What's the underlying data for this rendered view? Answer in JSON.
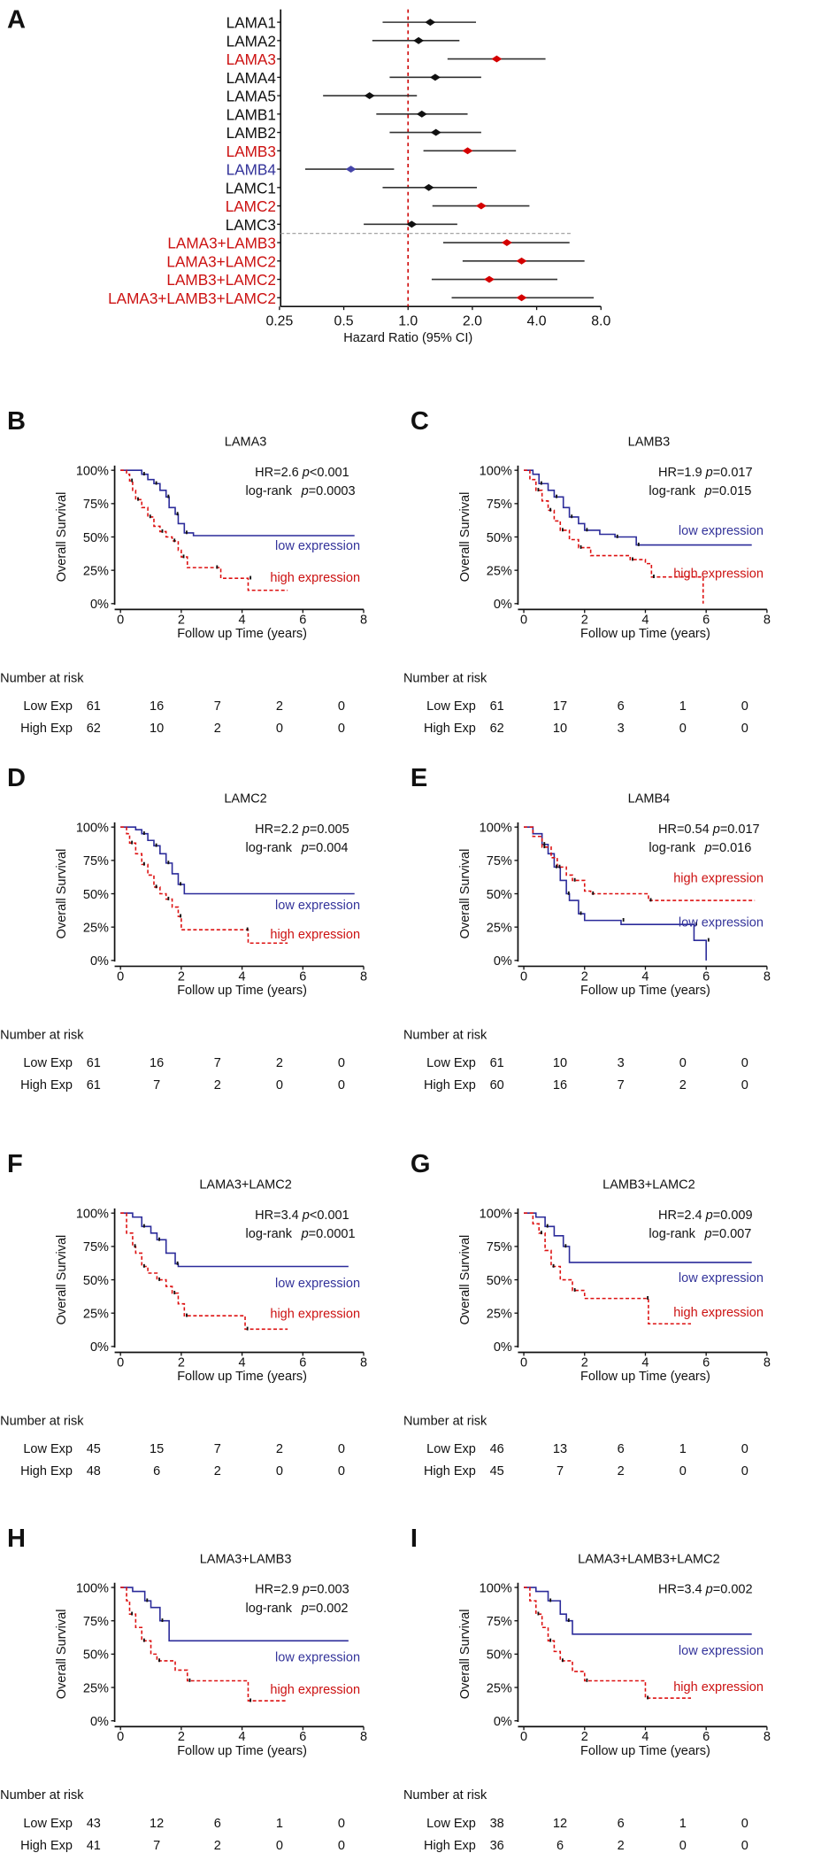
{
  "colors": {
    "red": "#cc1111",
    "blue": "#33339a",
    "black": "#111111",
    "diamond_blue": "#4545a8"
  },
  "chart_data": [
    {
      "panel": "A",
      "type": "forest",
      "xlabel": "Hazard Ratio (95% CI)",
      "xscale": "log2",
      "xticks": [
        "0.25",
        "0.5",
        "1.0",
        "2.0",
        "4.0",
        "8.0"
      ],
      "xtick_values": [
        0.25,
        0.5,
        1,
        2,
        4,
        8
      ],
      "reference_line": 1.0,
      "rows": [
        {
          "label": "LAMA1",
          "hr": 1.27,
          "lo": 0.76,
          "hi": 2.08,
          "color": "black"
        },
        {
          "label": "LAMA2",
          "hr": 1.12,
          "lo": 0.68,
          "hi": 1.74,
          "color": "black"
        },
        {
          "label": "LAMA3",
          "hr": 2.6,
          "lo": 1.53,
          "hi": 4.4,
          "color": "red"
        },
        {
          "label": "LAMA4",
          "hr": 1.34,
          "lo": 0.82,
          "hi": 2.2,
          "color": "black"
        },
        {
          "label": "LAMA5",
          "hr": 0.66,
          "lo": 0.4,
          "hi": 1.1,
          "color": "black"
        },
        {
          "label": "LAMB1",
          "hr": 1.16,
          "lo": 0.71,
          "hi": 1.9,
          "color": "black"
        },
        {
          "label": "LAMB2",
          "hr": 1.35,
          "lo": 0.82,
          "hi": 2.2,
          "color": "black"
        },
        {
          "label": "LAMB3",
          "hr": 1.9,
          "lo": 1.18,
          "hi": 3.2,
          "color": "red"
        },
        {
          "label": "LAMB4",
          "hr": 0.54,
          "lo": 0.33,
          "hi": 0.86,
          "color": "blue"
        },
        {
          "label": "LAMC1",
          "hr": 1.25,
          "lo": 0.76,
          "hi": 2.1,
          "color": "black"
        },
        {
          "label": "LAMC2",
          "hr": 2.2,
          "lo": 1.3,
          "hi": 3.7,
          "color": "red"
        },
        {
          "label": "LAMC3",
          "hr": 1.04,
          "lo": 0.62,
          "hi": 1.7,
          "color": "black"
        },
        {
          "label": "LAMA3+LAMB3",
          "hr": 2.9,
          "lo": 1.46,
          "hi": 5.7,
          "color": "red"
        },
        {
          "label": "LAMA3+LAMC2",
          "hr": 3.4,
          "lo": 1.8,
          "hi": 6.7,
          "color": "red"
        },
        {
          "label": "LAMB3+LAMC2",
          "hr": 2.4,
          "lo": 1.29,
          "hi": 5.0,
          "color": "red"
        },
        {
          "label": "LAMA3+LAMB3+LAMC2",
          "hr": 3.4,
          "lo": 1.6,
          "hi": 7.4,
          "color": "red"
        }
      ]
    },
    {
      "panel": "B",
      "type": "line",
      "title": "LAMA3",
      "hr": "HR=2.6",
      "hr_p": "<0.001",
      "logrank_p": "=0.0003",
      "low": [
        [
          0,
          1
        ],
        [
          0.5,
          1
        ],
        [
          0.7,
          0.97
        ],
        [
          0.9,
          0.93
        ],
        [
          1.1,
          0.9
        ],
        [
          1.3,
          0.85
        ],
        [
          1.5,
          0.8
        ],
        [
          1.6,
          0.72
        ],
        [
          1.8,
          0.67
        ],
        [
          1.9,
          0.6
        ],
        [
          2.1,
          0.53
        ],
        [
          2.4,
          0.51
        ],
        [
          7.7,
          0.51
        ]
      ],
      "high": [
        [
          0,
          1
        ],
        [
          0.2,
          0.97
        ],
        [
          0.3,
          0.92
        ],
        [
          0.4,
          0.85
        ],
        [
          0.5,
          0.78
        ],
        [
          0.7,
          0.72
        ],
        [
          0.9,
          0.65
        ],
        [
          1.1,
          0.58
        ],
        [
          1.3,
          0.54
        ],
        [
          1.5,
          0.5
        ],
        [
          1.7,
          0.47
        ],
        [
          1.9,
          0.4
        ],
        [
          2.0,
          0.35
        ],
        [
          2.2,
          0.27
        ],
        [
          3.1,
          0.27
        ],
        [
          3.3,
          0.19
        ],
        [
          4.2,
          0.19
        ],
        [
          4.2,
          0.1
        ],
        [
          5.5,
          0.1
        ]
      ],
      "risk_low": [
        "61",
        "16",
        "7",
        "2",
        "0"
      ],
      "risk_high": [
        "62",
        "10",
        "2",
        "0",
        "0"
      ]
    },
    {
      "panel": "C",
      "type": "line",
      "title": "LAMB3",
      "hr": "HR=1.9",
      "hr_p": "=0.017",
      "logrank_p": "=0.015",
      "low": [
        [
          0,
          1
        ],
        [
          0.3,
          0.97
        ],
        [
          0.5,
          0.9
        ],
        [
          0.8,
          0.85
        ],
        [
          1.0,
          0.8
        ],
        [
          1.3,
          0.72
        ],
        [
          1.5,
          0.65
        ],
        [
          1.8,
          0.6
        ],
        [
          2.0,
          0.55
        ],
        [
          2.5,
          0.52
        ],
        [
          3.0,
          0.5
        ],
        [
          3.7,
          0.5
        ],
        [
          3.7,
          0.44
        ],
        [
          7.5,
          0.44
        ]
      ],
      "high": [
        [
          0,
          1
        ],
        [
          0.2,
          0.93
        ],
        [
          0.4,
          0.85
        ],
        [
          0.6,
          0.77
        ],
        [
          0.8,
          0.7
        ],
        [
          1.0,
          0.62
        ],
        [
          1.2,
          0.55
        ],
        [
          1.5,
          0.48
        ],
        [
          1.8,
          0.42
        ],
        [
          2.2,
          0.36
        ],
        [
          3.5,
          0.33
        ],
        [
          4.0,
          0.3
        ],
        [
          4.2,
          0.2
        ],
        [
          5.9,
          0.2
        ],
        [
          5.9,
          0
        ]
      ],
      "risk_low": [
        "61",
        "17",
        "6",
        "1",
        "0"
      ],
      "risk_high": [
        "62",
        "10",
        "3",
        "0",
        "0"
      ]
    },
    {
      "panel": "D",
      "type": "line",
      "title": "LAMC2",
      "hr": "HR=2.2",
      "hr_p": "=0.005",
      "logrank_p": "=0.004",
      "low": [
        [
          0,
          1
        ],
        [
          0.5,
          0.98
        ],
        [
          0.7,
          0.95
        ],
        [
          0.9,
          0.9
        ],
        [
          1.1,
          0.86
        ],
        [
          1.3,
          0.8
        ],
        [
          1.5,
          0.73
        ],
        [
          1.7,
          0.65
        ],
        [
          1.9,
          0.57
        ],
        [
          2.1,
          0.5
        ],
        [
          7.7,
          0.5
        ]
      ],
      "high": [
        [
          0,
          1
        ],
        [
          0.2,
          0.95
        ],
        [
          0.3,
          0.88
        ],
        [
          0.5,
          0.8
        ],
        [
          0.7,
          0.72
        ],
        [
          0.9,
          0.64
        ],
        [
          1.1,
          0.55
        ],
        [
          1.3,
          0.5
        ],
        [
          1.5,
          0.46
        ],
        [
          1.7,
          0.4
        ],
        [
          1.9,
          0.33
        ],
        [
          2.0,
          0.23
        ],
        [
          4.1,
          0.23
        ],
        [
          4.2,
          0.13
        ],
        [
          5.5,
          0.13
        ]
      ],
      "risk_low": [
        "61",
        "16",
        "7",
        "2",
        "0"
      ],
      "risk_high": [
        "61",
        "7",
        "2",
        "0",
        "0"
      ]
    },
    {
      "panel": "E",
      "type": "line",
      "title": "LAMB4",
      "hr": "HR=0.54",
      "hr_p": "=0.017",
      "logrank_p": "=0.016",
      "low": [
        [
          0,
          1
        ],
        [
          0.3,
          0.95
        ],
        [
          0.6,
          0.87
        ],
        [
          0.8,
          0.8
        ],
        [
          1.0,
          0.7
        ],
        [
          1.2,
          0.6
        ],
        [
          1.4,
          0.5
        ],
        [
          1.5,
          0.45
        ],
        [
          1.8,
          0.35
        ],
        [
          2.0,
          0.3
        ],
        [
          3.2,
          0.3
        ],
        [
          3.2,
          0.27
        ],
        [
          5.6,
          0.27
        ],
        [
          5.6,
          0.15
        ],
        [
          6.0,
          0.15
        ],
        [
          6.0,
          0
        ]
      ],
      "high": [
        [
          0,
          1
        ],
        [
          0.3,
          0.93
        ],
        [
          0.6,
          0.85
        ],
        [
          0.9,
          0.77
        ],
        [
          1.1,
          0.7
        ],
        [
          1.4,
          0.64
        ],
        [
          1.6,
          0.6
        ],
        [
          2.0,
          0.52
        ],
        [
          2.2,
          0.5
        ],
        [
          4.1,
          0.5
        ],
        [
          4.1,
          0.45
        ],
        [
          7.6,
          0.45
        ]
      ],
      "risk_low": [
        "61",
        "10",
        "3",
        "0",
        "0"
      ],
      "risk_high": [
        "60",
        "16",
        "7",
        "2",
        "0"
      ]
    },
    {
      "panel": "F",
      "type": "line",
      "title": "LAMA3+LAMC2",
      "hr": "HR=3.4",
      "hr_p": "<0.001",
      "logrank_p": "=0.0001",
      "low": [
        [
          0,
          1
        ],
        [
          0.4,
          0.97
        ],
        [
          0.7,
          0.9
        ],
        [
          1.0,
          0.85
        ],
        [
          1.2,
          0.8
        ],
        [
          1.5,
          0.7
        ],
        [
          1.8,
          0.62
        ],
        [
          1.9,
          0.6
        ],
        [
          7.5,
          0.6
        ]
      ],
      "high": [
        [
          0,
          1
        ],
        [
          0.2,
          0.85
        ],
        [
          0.4,
          0.75
        ],
        [
          0.5,
          0.7
        ],
        [
          0.7,
          0.6
        ],
        [
          0.9,
          0.55
        ],
        [
          1.2,
          0.5
        ],
        [
          1.5,
          0.45
        ],
        [
          1.7,
          0.4
        ],
        [
          1.9,
          0.32
        ],
        [
          2.1,
          0.23
        ],
        [
          4.1,
          0.23
        ],
        [
          4.1,
          0.13
        ],
        [
          5.5,
          0.13
        ]
      ],
      "risk_low": [
        "45",
        "15",
        "7",
        "2",
        "0"
      ],
      "risk_high": [
        "48",
        "6",
        "2",
        "0",
        "0"
      ]
    },
    {
      "panel": "G",
      "type": "line",
      "title": "LAMB3+LAMC2",
      "hr": "HR=2.4",
      "hr_p": "=0.009",
      "logrank_p": "=0.007",
      "low": [
        [
          0,
          1
        ],
        [
          0.4,
          0.97
        ],
        [
          0.7,
          0.9
        ],
        [
          1.0,
          0.83
        ],
        [
          1.3,
          0.75
        ],
        [
          1.5,
          0.63
        ],
        [
          7.5,
          0.63
        ]
      ],
      "high": [
        [
          0,
          1
        ],
        [
          0.3,
          0.92
        ],
        [
          0.5,
          0.85
        ],
        [
          0.7,
          0.72
        ],
        [
          0.9,
          0.6
        ],
        [
          1.2,
          0.5
        ],
        [
          1.6,
          0.42
        ],
        [
          2.0,
          0.36
        ],
        [
          4.0,
          0.36
        ],
        [
          4.1,
          0.17
        ],
        [
          5.5,
          0.17
        ]
      ],
      "risk_low": [
        "46",
        "13",
        "6",
        "1",
        "0"
      ],
      "risk_high": [
        "45",
        "7",
        "2",
        "0",
        "0"
      ]
    },
    {
      "panel": "H",
      "type": "line",
      "title": "LAMA3+LAMB3",
      "hr": "HR=2.9",
      "hr_p": "=0.003",
      "logrank_p": "=0.002",
      "low": [
        [
          0,
          1
        ],
        [
          0.4,
          0.97
        ],
        [
          0.8,
          0.9
        ],
        [
          1.0,
          0.85
        ],
        [
          1.3,
          0.75
        ],
        [
          1.6,
          0.6
        ],
        [
          7.5,
          0.6
        ]
      ],
      "high": [
        [
          0,
          1
        ],
        [
          0.2,
          0.9
        ],
        [
          0.3,
          0.8
        ],
        [
          0.5,
          0.7
        ],
        [
          0.7,
          0.6
        ],
        [
          1.0,
          0.5
        ],
        [
          1.2,
          0.45
        ],
        [
          1.8,
          0.38
        ],
        [
          2.2,
          0.3
        ],
        [
          4.1,
          0.3
        ],
        [
          4.2,
          0.15
        ],
        [
          5.5,
          0.15
        ]
      ],
      "risk_low": [
        "43",
        "12",
        "6",
        "1",
        "0"
      ],
      "risk_high": [
        "41",
        "7",
        "2",
        "0",
        "0"
      ]
    },
    {
      "panel": "I",
      "type": "line",
      "title": "LAMA3+LAMB3+LAMC2",
      "hr": "HR=3.4",
      "hr_p": "=0.002",
      "logrank_p": null,
      "low": [
        [
          0,
          1
        ],
        [
          0.4,
          0.97
        ],
        [
          0.8,
          0.9
        ],
        [
          1.2,
          0.8
        ],
        [
          1.4,
          0.75
        ],
        [
          1.6,
          0.65
        ],
        [
          7.5,
          0.65
        ]
      ],
      "high": [
        [
          0,
          1
        ],
        [
          0.2,
          0.9
        ],
        [
          0.4,
          0.8
        ],
        [
          0.6,
          0.7
        ],
        [
          0.8,
          0.6
        ],
        [
          1.0,
          0.52
        ],
        [
          1.2,
          0.45
        ],
        [
          1.6,
          0.37
        ],
        [
          2.0,
          0.3
        ],
        [
          4.0,
          0.3
        ],
        [
          4.0,
          0.17
        ],
        [
          5.5,
          0.17
        ]
      ],
      "risk_low": [
        "38",
        "12",
        "6",
        "1",
        "0"
      ],
      "risk_high": [
        "36",
        "6",
        "2",
        "0",
        "0"
      ]
    }
  ],
  "km_common": {
    "ylabel": "Overall Survival",
    "xlabel": "Follow up Time (years)",
    "yticks": [
      "100%",
      "75%",
      "50%",
      "25%",
      "0%"
    ],
    "xticks": [
      "0",
      "2",
      "4",
      "6",
      "8"
    ],
    "xlim": [
      0,
      8
    ],
    "ylim": [
      0,
      1
    ],
    "low_label": "low expression",
    "high_label": "high expression",
    "logrank_label": "log-rank",
    "p_symbol": "p",
    "risk_title": "Number at risk",
    "risk_low_label": "Low Exp",
    "risk_high_label": "High Exp"
  }
}
